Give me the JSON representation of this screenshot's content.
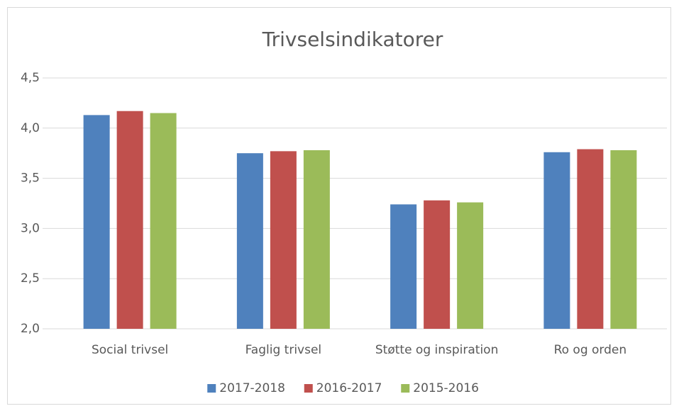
{
  "chart_data": {
    "type": "bar",
    "title": "Trivselsindikatorer",
    "categories": [
      "Social trivsel",
      "Faglig trivsel",
      "Støtte og inspiration",
      "Ro og orden"
    ],
    "series": [
      {
        "name": "2017-2018",
        "color": "#4f81bd",
        "values": [
          4.13,
          3.75,
          3.24,
          3.76
        ]
      },
      {
        "name": "2016-2017",
        "color": "#c0504d",
        "values": [
          4.17,
          3.77,
          3.28,
          3.79
        ]
      },
      {
        "name": "2015-2016",
        "color": "#9bbb59",
        "values": [
          4.15,
          3.78,
          3.26,
          3.78
        ]
      }
    ],
    "ylim": [
      2.0,
      4.5
    ],
    "yticks": [
      {
        "value": 2.0,
        "label": "2,0"
      },
      {
        "value": 2.5,
        "label": "2,5"
      },
      {
        "value": 3.0,
        "label": "3,0"
      },
      {
        "value": 3.5,
        "label": "3,5"
      },
      {
        "value": 4.0,
        "label": "4,0"
      },
      {
        "value": 4.5,
        "label": "4,5"
      }
    ],
    "grid": true,
    "legend": "bottom"
  }
}
